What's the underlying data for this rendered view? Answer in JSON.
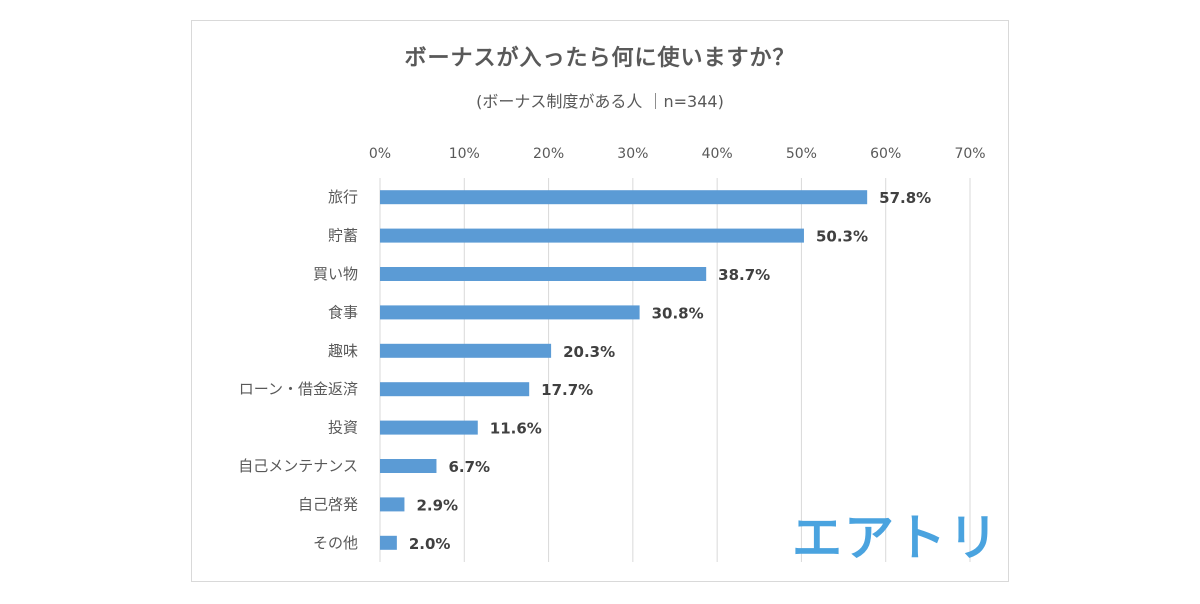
{
  "chart_data": {
    "type": "bar",
    "orientation": "horizontal",
    "title": "ボーナスが入ったら何に使いますか？",
    "subtitle": "(ボーナス制度がある人 ｜n=344)",
    "categories": [
      "旅行",
      "貯蓄",
      "買い物",
      "食事",
      "趣味",
      "ローン・借金返済",
      "投資",
      "自己メンテナンス",
      "自己啓発",
      "その他"
    ],
    "values": [
      57.8,
      50.3,
      38.7,
      30.8,
      20.3,
      17.7,
      11.6,
      6.7,
      2.9,
      2.0
    ],
    "data_labels": [
      "57.8%",
      "50.3%",
      "38.7%",
      "30.8%",
      "20.3%",
      "17.7%",
      "11.6%",
      "6.7%",
      "2.9%",
      "2.0%"
    ],
    "x_ticks": [
      0,
      10,
      20,
      30,
      40,
      50,
      60,
      70
    ],
    "x_tick_labels": [
      "0%",
      "10%",
      "20%",
      "30%",
      "40%",
      "50%",
      "60%",
      "70%"
    ],
    "xlim": [
      0,
      70
    ],
    "xlabel": "",
    "ylabel": "",
    "grid": true,
    "bar_color": "#5b9bd5",
    "grid_color": "#d9d9d9"
  },
  "logo": {
    "text": "エアトリ",
    "color": "#4aa3df"
  }
}
